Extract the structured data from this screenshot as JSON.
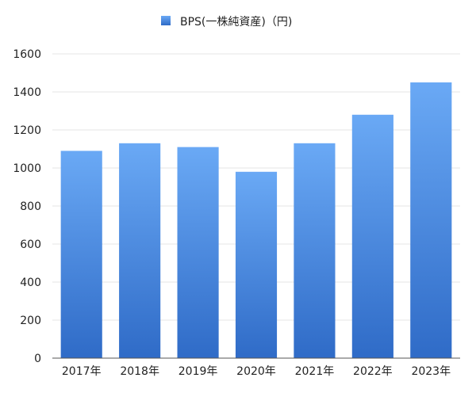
{
  "chart_data": {
    "type": "bar",
    "categories": [
      "2017年",
      "2018年",
      "2019年",
      "2020年",
      "2021年",
      "2022年",
      "2023年"
    ],
    "series": [
      {
        "name": "BPS(一株純資産)（円)",
        "values": [
          1090,
          1130,
          1110,
          980,
          1130,
          1280,
          1450
        ]
      }
    ],
    "yticks": [
      0,
      200,
      400,
      600,
      800,
      1000,
      1200,
      1400,
      1600
    ],
    "ylim": [
      0,
      1600
    ],
    "grid": true,
    "legend_position": "top-center",
    "colors": {
      "bar_top": "#6aa9f5",
      "bar_bottom": "#2f6bc7",
      "grid": "#e6e6e6",
      "axis": "#555555"
    }
  }
}
